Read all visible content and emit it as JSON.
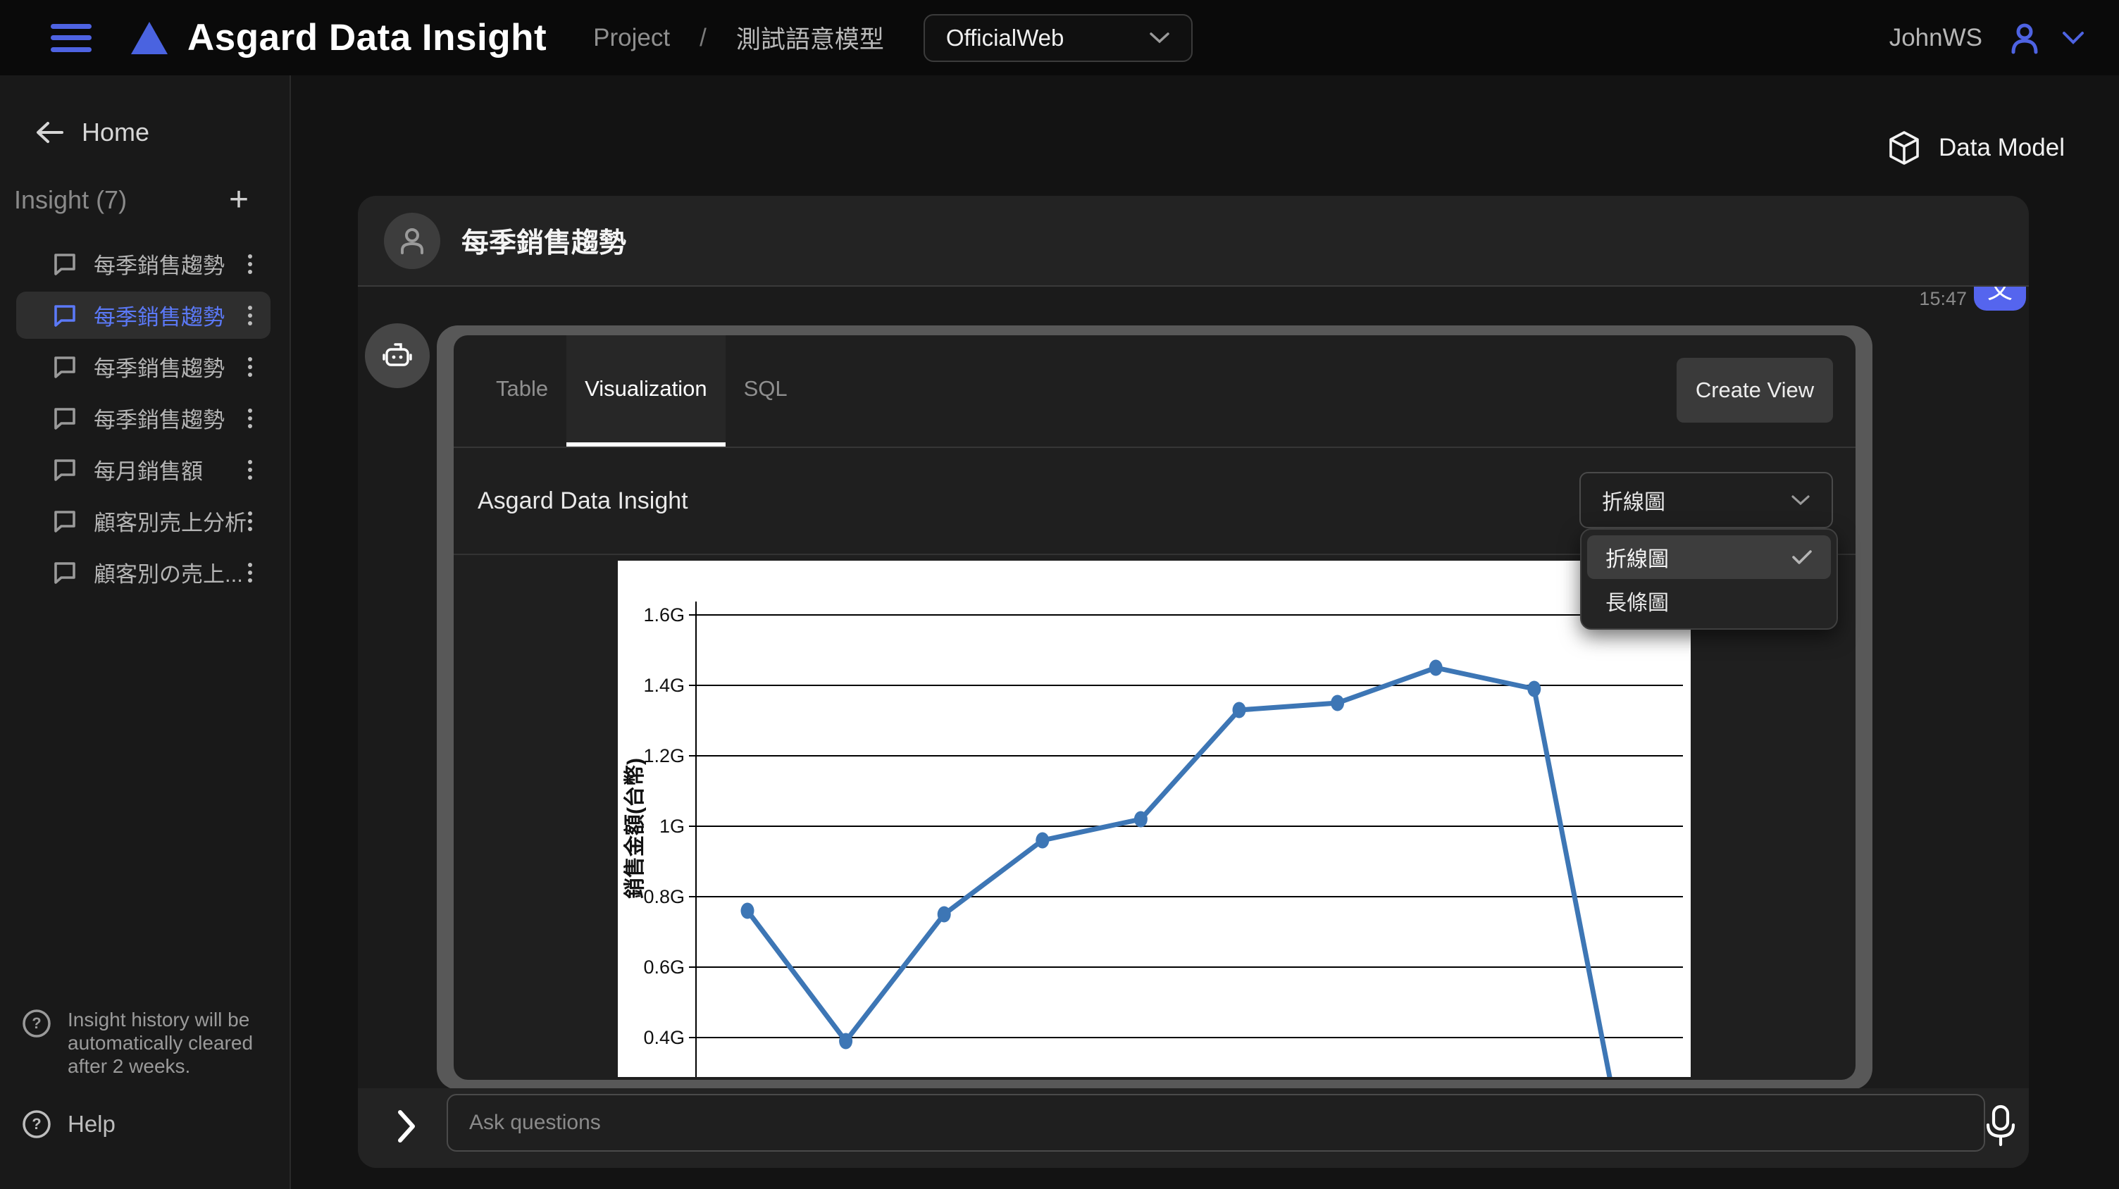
{
  "header": {
    "app_title": "Asgard Data Insight",
    "breadcrumb_project": "Project",
    "breadcrumb_separator": "/",
    "breadcrumb_model": "測試語意模型",
    "workspace_selected": "OfficialWeb",
    "username": "JohnWS"
  },
  "sidebar": {
    "home_label": "Home",
    "section_label": "Insight (7)",
    "items": [
      {
        "label": "每季銷售趨勢",
        "active": false
      },
      {
        "label": "每季銷售趨勢",
        "active": true
      },
      {
        "label": "每季銷售趨勢",
        "active": false
      },
      {
        "label": "每季銷售趨勢",
        "active": false
      },
      {
        "label": "每月銷售額",
        "active": false
      },
      {
        "label": "顧客別売上分析",
        "active": false
      },
      {
        "label": "顧客別の売上...",
        "active": false
      }
    ],
    "footer_note": "Insight history will be automatically cleared after 2 weeks.",
    "help_label": "Help"
  },
  "main": {
    "data_model_label": "Data Model",
    "chat_title": "每季銷售趨勢",
    "timestamp": "15:47",
    "user_bubble_fragment": "文",
    "tabs": [
      {
        "label": "Table",
        "active": false
      },
      {
        "label": "Visualization",
        "active": true
      },
      {
        "label": "SQL",
        "active": false
      }
    ],
    "create_view_label": "Create View",
    "chart_section_title": "Asgard Data Insight",
    "chart_type_selected": "折線圖",
    "dropdown_options": [
      {
        "label": "折線圖",
        "selected": true
      },
      {
        "label": "長條圖",
        "selected": false
      }
    ],
    "ask_placeholder": "Ask questions"
  },
  "icons": {
    "hamburger": "menu",
    "triangle-logo": "brand",
    "chevron-down": "expand",
    "user": "account",
    "arrow-left": "back",
    "plus": "new-insight",
    "chat-bubble": "insight-item",
    "kebab": "item-menu",
    "question-circle": "help",
    "cube": "data-model",
    "robot": "assistant",
    "check": "selected-option",
    "chevron-right": "expand-input",
    "microphone": "voice-input"
  },
  "chart_data": {
    "type": "line",
    "title": "Asgard Data Insight",
    "ylabel": "銷售金額(台幣)",
    "xlabel_visible": false,
    "y_ticks": [
      {
        "label": "1.6G",
        "value": 1.6
      },
      {
        "label": "1.4G",
        "value": 1.4
      },
      {
        "label": "1.2G",
        "value": 1.2
      },
      {
        "label": "1G",
        "value": 1.0
      },
      {
        "label": "0.8G",
        "value": 0.8
      },
      {
        "label": "0.6G",
        "value": 0.6
      },
      {
        "label": "0.4G",
        "value": 0.4
      }
    ],
    "values_g": [
      0.76,
      0.39,
      0.75,
      0.96,
      1.02,
      1.33,
      1.35,
      1.45,
      1.39
    ],
    "tail_descends_below_view": true,
    "note": "x-axis labels and chart bottom are clipped out of the visible scroll area; final segment plunges below view",
    "grid": true,
    "legend": "none",
    "line_color": "#3d76b5",
    "background": "#ffffff",
    "ylim_visible": [
      0.31,
      1.72
    ]
  }
}
